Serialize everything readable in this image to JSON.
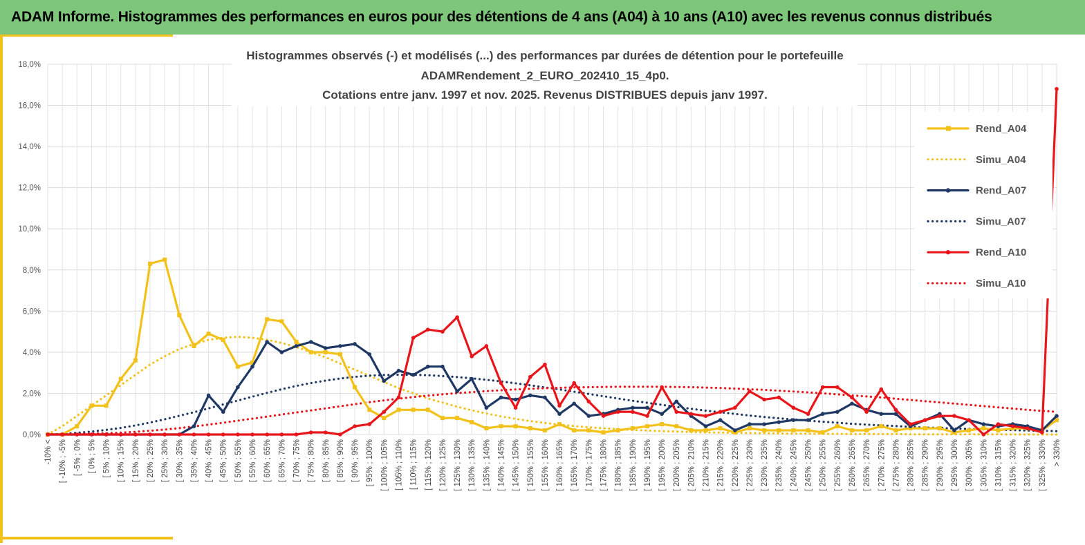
{
  "header": {
    "title": "ADAM Informe. Histogrammes des performances en euros pour des détentions de 4 ans (A04) à 10 ans (A10) avec les revenus connus distribués"
  },
  "chart_data": {
    "type": "line",
    "title_lines": [
      "Histogrammes observés (-) et modélisés (...) des performances par durées de détention pour le portefeuille",
      "ADAMRendement_2_EURO_202410_15_4p0.",
      "Cotations entre janv. 1997 et nov. 2025. Revenus DISTRIBUES depuis janv 1997."
    ],
    "ylim": [
      0,
      18
    ],
    "y_ticks": [
      "0,0%",
      "2,0%",
      "4,0%",
      "6,0%",
      "8,0%",
      "10,0%",
      "12,0%",
      "14,0%",
      "16,0%",
      "18,0%"
    ],
    "grid": true,
    "legend_position": "right",
    "categories": [
      "-10% <",
      "[ -10% ; -5%",
      "[ -5% ; 0%",
      "[ 0% ; 5%",
      "[ 5% ; 10%",
      "[ 10% ; 15%",
      "[ 15% ; 20%",
      "[ 20% ; 25%",
      "[ 25% ; 30%",
      "[ 30% ; 35%",
      "[ 35% ; 40%",
      "[ 40% ; 45%",
      "[ 45% ; 50%",
      "[ 50% ; 55%",
      "[ 55% ; 60%",
      "[ 60% ; 65%",
      "[ 65% ; 70%",
      "[ 70% ; 75%",
      "[ 75% ; 80%",
      "[ 80% ; 85%",
      "[ 85% ; 90%",
      "[ 90% ; 95%",
      "[ 95% ; 100%",
      "[ 100% ; 105%",
      "[ 105% ; 110%",
      "[ 110% ; 115%",
      "[ 115% ; 120%",
      "[ 120% ; 125%",
      "[ 125% ; 130%",
      "[ 130% ; 135%",
      "[ 135% ; 140%",
      "[ 140% ; 145%",
      "[ 145% ; 150%",
      "[ 150% ; 155%",
      "[ 155% ; 160%",
      "[ 160% ; 165%",
      "[ 165% ; 170%",
      "[ 170% ; 175%",
      "[ 175% ; 180%",
      "[ 180% ; 185%",
      "[ 185% ; 190%",
      "[ 190% ; 195%",
      "[ 195% ; 200%",
      "[ 200% ; 205%",
      "[ 205% ; 210%",
      "[ 210% ; 215%",
      "[ 215% ; 220%",
      "[ 220% ; 225%",
      "[ 225% ; 230%",
      "[ 230% ; 235%",
      "[ 235% ; 240%",
      "[ 240% ; 245%",
      "[ 245% ; 250%",
      "[ 250% ; 255%",
      "[ 255% ; 260%",
      "[ 260% ; 265%",
      "[ 265% ; 270%",
      "[ 270% ; 275%",
      "[ 275% ; 280%",
      "[ 280% ; 285%",
      "[ 285% ; 290%",
      "[ 290% ; 295%",
      "[ 295% ; 300%",
      "[ 300% ; 305%",
      "[ 305% ; 310%",
      "[ 310% ; 315%",
      "[ 315% ; 320%",
      "[ 320% ; 325%",
      "[ 325% ; 330%",
      "> 330%"
    ],
    "series": [
      {
        "name": "Rend_A04",
        "color": "#f2c21b",
        "style": "solid",
        "marker": "square",
        "values": [
          0.0,
          0.0,
          0.4,
          1.4,
          1.4,
          2.7,
          3.6,
          8.3,
          8.5,
          5.8,
          4.3,
          4.9,
          4.6,
          3.3,
          3.5,
          5.6,
          5.5,
          4.5,
          4.0,
          4.0,
          3.9,
          2.3,
          1.2,
          0.8,
          1.2,
          1.2,
          1.2,
          0.8,
          0.8,
          0.6,
          0.3,
          0.4,
          0.4,
          0.3,
          0.2,
          0.5,
          0.2,
          0.2,
          0.1,
          0.2,
          0.3,
          0.4,
          0.5,
          0.4,
          0.2,
          0.2,
          0.3,
          0.1,
          0.3,
          0.2,
          0.2,
          0.2,
          0.2,
          0.1,
          0.4,
          0.2,
          0.2,
          0.4,
          0.2,
          0.3,
          0.3,
          0.3,
          0.1,
          0.2,
          0.3,
          0.2,
          0.3,
          0.3,
          0.2,
          0.7
        ]
      },
      {
        "name": "Simu_A04",
        "color": "#f2c21b",
        "style": "dotted",
        "marker": "none",
        "values": [
          0.0,
          0.4,
          0.9,
          1.4,
          1.9,
          2.4,
          2.9,
          3.4,
          3.8,
          4.15,
          4.4,
          4.6,
          4.7,
          4.75,
          4.7,
          4.6,
          4.45,
          4.25,
          4.0,
          3.75,
          3.45,
          3.15,
          2.85,
          2.55,
          2.25,
          2.0,
          1.75,
          1.55,
          1.35,
          1.18,
          1.02,
          0.88,
          0.76,
          0.65,
          0.56,
          0.48,
          0.41,
          0.35,
          0.3,
          0.26,
          0.22,
          0.19,
          0.16,
          0.14,
          0.12,
          0.1,
          0.09,
          0.08,
          0.07,
          0.06,
          0.05,
          0.04,
          0.04,
          0.03,
          0.03,
          0.02,
          0.02,
          0.02,
          0.02,
          0.01,
          0.01,
          0.01,
          0.01,
          0.01,
          0.01,
          0.01,
          0.0,
          0.0,
          0.0,
          0.0
        ]
      },
      {
        "name": "Rend_A07",
        "color": "#1f3864",
        "style": "solid",
        "marker": "circle",
        "values": [
          0.0,
          0.0,
          0.0,
          0.0,
          0.0,
          0.0,
          0.0,
          0.0,
          0.0,
          0.0,
          0.4,
          1.9,
          1.1,
          2.3,
          3.3,
          4.5,
          4.0,
          4.3,
          4.5,
          4.2,
          4.3,
          4.4,
          3.9,
          2.6,
          3.1,
          2.9,
          3.3,
          3.3,
          2.1,
          2.7,
          1.3,
          1.8,
          1.7,
          1.9,
          1.8,
          1.0,
          1.5,
          0.9,
          1.0,
          1.2,
          1.3,
          1.3,
          1.0,
          1.6,
          0.9,
          0.4,
          0.7,
          0.2,
          0.5,
          0.5,
          0.6,
          0.7,
          0.7,
          1.0,
          1.1,
          1.5,
          1.2,
          1.0,
          1.0,
          0.4,
          0.7,
          1.0,
          0.2,
          0.7,
          0.5,
          0.4,
          0.5,
          0.4,
          0.2,
          0.9
        ]
      },
      {
        "name": "Simu_A07",
        "color": "#1f3864",
        "style": "dotted",
        "marker": "none",
        "values": [
          0.0,
          0.03,
          0.08,
          0.14,
          0.22,
          0.32,
          0.44,
          0.58,
          0.74,
          0.91,
          1.08,
          1.27,
          1.46,
          1.65,
          1.84,
          2.02,
          2.2,
          2.36,
          2.5,
          2.62,
          2.72,
          2.8,
          2.86,
          2.89,
          2.9,
          2.9,
          2.88,
          2.84,
          2.79,
          2.73,
          2.66,
          2.58,
          2.49,
          2.39,
          2.29,
          2.19,
          2.08,
          1.97,
          1.86,
          1.75,
          1.64,
          1.54,
          1.44,
          1.34,
          1.25,
          1.16,
          1.08,
          1.0,
          0.92,
          0.85,
          0.79,
          0.73,
          0.67,
          0.62,
          0.57,
          0.52,
          0.48,
          0.44,
          0.41,
          0.37,
          0.34,
          0.32,
          0.29,
          0.27,
          0.25,
          0.23,
          0.21,
          0.19,
          0.18,
          0.16
        ]
      },
      {
        "name": "Rend_A10",
        "color": "#e8151b",
        "style": "solid",
        "marker": "circle",
        "values": [
          0.0,
          0.0,
          0.0,
          0.0,
          0.0,
          0.0,
          0.0,
          0.0,
          0.0,
          0.0,
          0.0,
          0.0,
          0.0,
          0.0,
          0.0,
          0.0,
          0.0,
          0.0,
          0.1,
          0.1,
          0.0,
          0.4,
          0.5,
          1.1,
          1.8,
          4.7,
          5.1,
          5.0,
          5.7,
          3.8,
          4.3,
          2.5,
          1.3,
          2.8,
          3.4,
          1.4,
          2.5,
          1.6,
          0.9,
          1.1,
          1.1,
          0.9,
          2.3,
          1.1,
          1.0,
          0.9,
          1.1,
          1.3,
          2.1,
          1.7,
          1.8,
          1.3,
          1.0,
          2.3,
          2.3,
          1.8,
          1.1,
          2.2,
          1.2,
          0.5,
          0.7,
          0.9,
          0.9,
          0.7,
          0.0,
          0.5,
          0.4,
          0.3,
          0.1,
          16.8
        ]
      },
      {
        "name": "Simu_A10",
        "color": "#e8151b",
        "style": "dotted",
        "marker": "none",
        "values": [
          0.0,
          0.01,
          0.02,
          0.04,
          0.06,
          0.09,
          0.13,
          0.18,
          0.24,
          0.31,
          0.39,
          0.48,
          0.57,
          0.67,
          0.77,
          0.87,
          0.97,
          1.07,
          1.17,
          1.27,
          1.37,
          1.47,
          1.57,
          1.66,
          1.74,
          1.82,
          1.89,
          1.95,
          2.01,
          2.06,
          2.11,
          2.15,
          2.19,
          2.22,
          2.25,
          2.27,
          2.29,
          2.3,
          2.31,
          2.32,
          2.32,
          2.32,
          2.32,
          2.31,
          2.3,
          2.28,
          2.26,
          2.23,
          2.2,
          2.17,
          2.13,
          2.09,
          2.05,
          2.0,
          1.95,
          1.9,
          1.85,
          1.8,
          1.74,
          1.68,
          1.62,
          1.56,
          1.5,
          1.44,
          1.38,
          1.32,
          1.26,
          1.2,
          1.15,
          1.1
        ]
      }
    ]
  }
}
